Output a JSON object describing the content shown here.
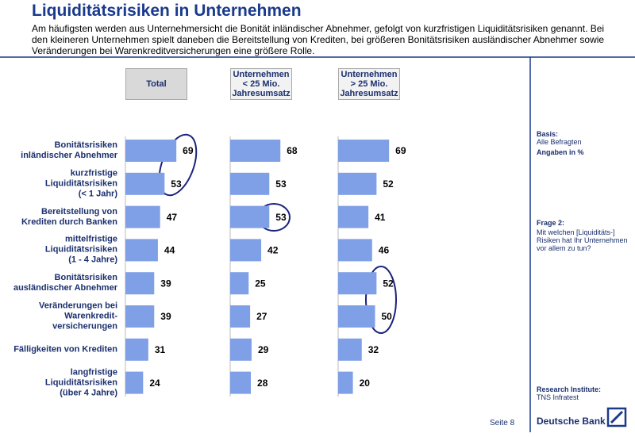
{
  "header": {
    "title": "Liquiditätsrisiken in Unternehmen",
    "subtitle": "Am häufigsten werden aus Unternehmersicht die Bonität inländischer Abnehmer, gefolgt von kurzfristigen Liquiditätsrisiken genannt. Bei den kleineren Unternehmen spielt daneben die Bereitstellung von Krediten, bei größeren Bonitätsrisiken ausländischer Abnehmer sowie Veränderungen bei Warenkreditversicherungen eine größere Rolle."
  },
  "chart_data": {
    "type": "barh",
    "categories": [
      "Bonitätsrisiken\ninländischer Abnehmer",
      "kurzfristige\nLiquiditätsrisiken\n(< 1 Jahr)",
      "Bereitstellung von\nKrediten durch Banken",
      "mittelfristige\nLiquiditätsrisiken\n(1 - 4 Jahre)",
      "Bonitätsrisiken\nausländischer Abnehmer",
      "Veränderungen bei\nWarenkredit-\nversicherungen",
      "Fälligkeiten von Krediten",
      "langfristige\nLiquiditätsrisiken\n(über 4 Jahre)"
    ],
    "series": [
      {
        "name": "Total",
        "color": "#7f9fe6",
        "values": [
          69,
          53,
          47,
          44,
          39,
          39,
          31,
          24
        ]
      },
      {
        "name": "Unternehmen\n< 25 Mio.\nJahresumsatz",
        "color": "#7f9fe6",
        "values": [
          68,
          53,
          53,
          42,
          25,
          27,
          29,
          28
        ]
      },
      {
        "name": "Unternehmen\n> 25 Mio.\nJahresumsatz",
        "color": "#7f9fe6",
        "values": [
          69,
          52,
          41,
          46,
          52,
          50,
          32,
          20
        ]
      }
    ],
    "xlim": [
      0,
      100
    ]
  },
  "sidebar": {
    "basis_label": "Basis:",
    "basis": "Alle Befragten",
    "unit": "Angaben in %",
    "question_label": "Frage 2:",
    "question": "Mit welchen [Liquiditäts-]\nRisiken hat Ihr Unternehmen\nvor allem zu tun?",
    "institute_label": "Research Institute:",
    "institute": "TNS Infratest"
  },
  "footer": {
    "page": "Seite 8",
    "brand": "Deutsche Bank"
  }
}
